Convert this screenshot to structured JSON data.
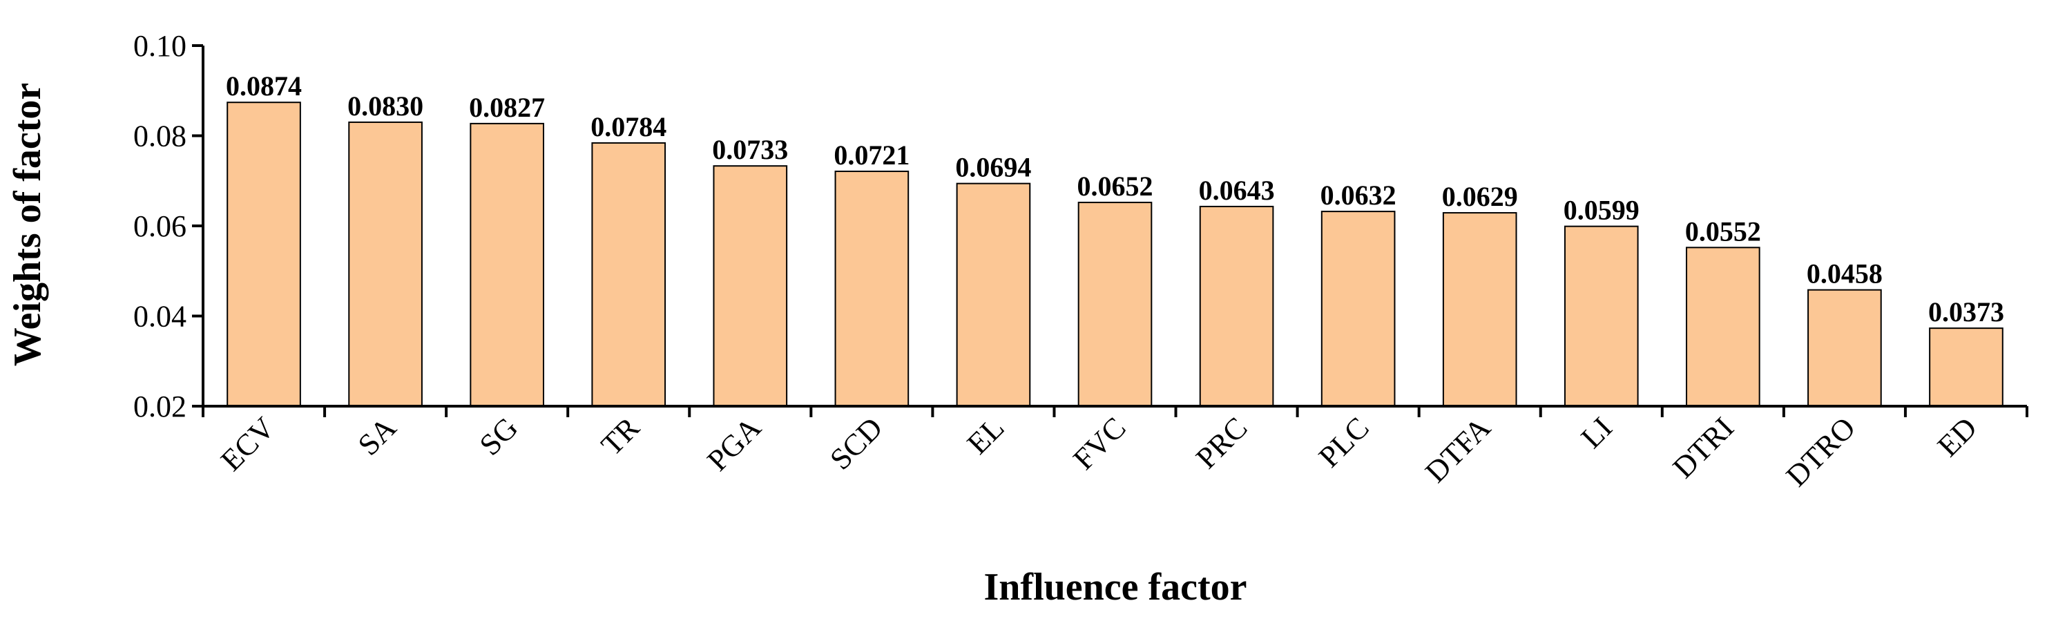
{
  "chart_data": {
    "type": "bar",
    "title": "",
    "xlabel": "Influence factor",
    "ylabel": "Weights of factor",
    "categories": [
      "ECV",
      "SA",
      "SG",
      "TR",
      "PGA",
      "SCD",
      "EL",
      "FVC",
      "PRC",
      "PLC",
      "DTFA",
      "LI",
      "DTRI",
      "DTRO",
      "ED"
    ],
    "values": [
      0.0874,
      0.083,
      0.0827,
      0.0784,
      0.0733,
      0.0721,
      0.0694,
      0.0652,
      0.0643,
      0.0632,
      0.0629,
      0.0599,
      0.0552,
      0.0458,
      0.0373
    ],
    "value_labels": [
      "0.0874",
      "0.0830",
      "0.0827",
      "0.0784",
      "0.0733",
      "0.0721",
      "0.0694",
      "0.0652",
      "0.0643",
      "0.0632",
      "0.0629",
      "0.0599",
      "0.0552",
      "0.0458",
      "0.0373"
    ],
    "ylim": [
      0.02,
      0.1
    ],
    "yticks": [
      0.02,
      0.04,
      0.06,
      0.08,
      0.1
    ],
    "ytick_labels": [
      "0.02",
      "0.04",
      "0.06",
      "0.08",
      "0.10"
    ],
    "grid": false,
    "legend": "none",
    "bar_color": "#FCC795",
    "bar_edge_color": "#000000"
  }
}
